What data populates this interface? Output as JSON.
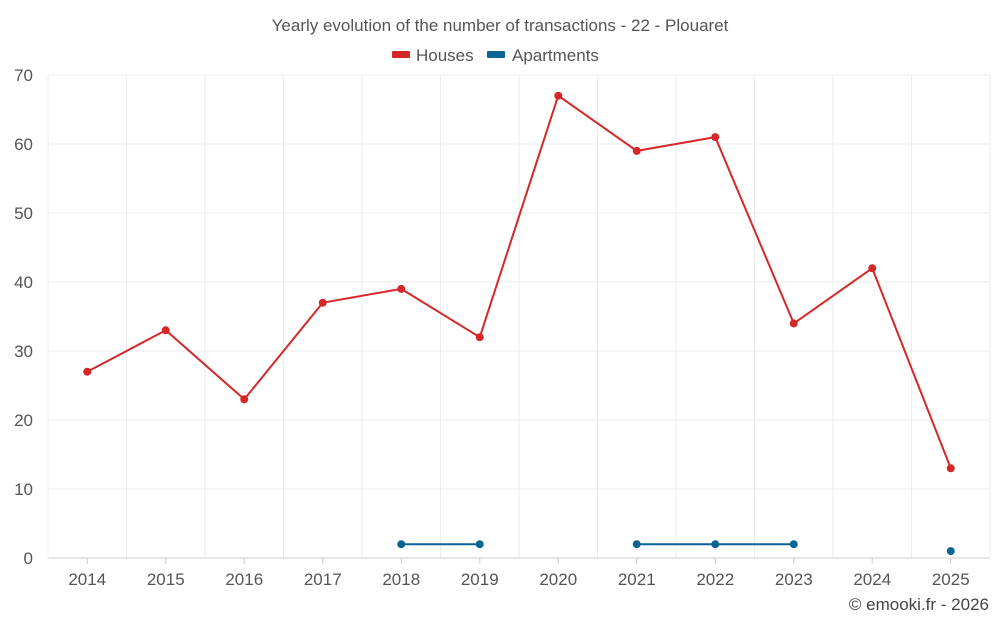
{
  "chart_data": {
    "type": "line",
    "title": "Yearly evolution of the number of transactions - 22 - Plouaret",
    "categories": [
      "2014",
      "2015",
      "2016",
      "2017",
      "2018",
      "2019",
      "2020",
      "2021",
      "2022",
      "2023",
      "2024",
      "2025"
    ],
    "series": [
      {
        "name": "Houses",
        "color": "#d62728",
        "values": [
          27,
          33,
          23,
          37,
          39,
          32,
          67,
          59,
          61,
          34,
          42,
          13
        ]
      },
      {
        "name": "Apartments",
        "color": "#0a6494",
        "values": [
          null,
          null,
          null,
          null,
          2,
          2,
          null,
          2,
          2,
          2,
          null,
          1
        ]
      }
    ],
    "y_ticks": [
      0,
      10,
      20,
      30,
      40,
      50,
      60,
      70
    ],
    "ylim": [
      0,
      70
    ],
    "xlabel": "",
    "ylabel": "",
    "grid": true,
    "legend_position": "top-center"
  },
  "credit": "© emooki.fr - 2026"
}
